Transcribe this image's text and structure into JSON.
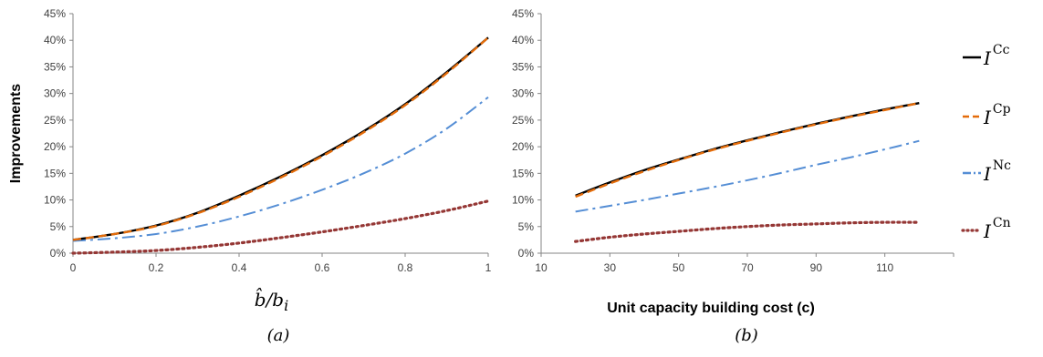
{
  "chart_data": [
    {
      "type": "line",
      "panel_label": "(a)",
      "xlabel": "b̂/b",
      "xlabel_sub": "i",
      "ylabel": "Improvements",
      "xlim": [
        0,
        1
      ],
      "ylim": [
        0,
        45
      ],
      "x_ticks": [
        "0",
        "0.2",
        "0.4",
        "0.6",
        "0.8",
        "1"
      ],
      "y_ticks": [
        "0%",
        "5%",
        "10%",
        "15%",
        "20%",
        "25%",
        "30%",
        "35%",
        "40%",
        "45%"
      ],
      "x": [
        0,
        0.1,
        0.2,
        0.3,
        0.4,
        0.5,
        0.6,
        0.7,
        0.8,
        0.9,
        1.0
      ],
      "series": [
        {
          "name": "Cc",
          "color": "#000000",
          "values": [
            2.5,
            3.6,
            5.2,
            7.6,
            10.8,
            14.4,
            18.4,
            22.9,
            28.0,
            34.0,
            40.5
          ]
        },
        {
          "name": "Cp",
          "color": "#E46C0A",
          "values": [
            2.5,
            3.6,
            5.1,
            7.5,
            10.6,
            14.2,
            18.2,
            22.7,
            27.8,
            33.8,
            40.5
          ]
        },
        {
          "name": "Nc",
          "color": "#558ED5",
          "values": [
            2.3,
            2.8,
            3.6,
            5.0,
            6.9,
            9.2,
            11.9,
            15.0,
            18.7,
            23.4,
            29.3
          ]
        },
        {
          "name": "Cn",
          "color": "#953735",
          "values": [
            0.0,
            0.2,
            0.5,
            1.1,
            1.9,
            2.9,
            4.0,
            5.2,
            6.5,
            8.0,
            9.8
          ]
        }
      ]
    },
    {
      "type": "line",
      "panel_label": "(b)",
      "xlabel": "Unit capacity building cost (c)",
      "ylabel": "",
      "xlim": [
        10,
        130
      ],
      "ylim": [
        0,
        45
      ],
      "x_ticks": [
        "10",
        "30",
        "50",
        "70",
        "90",
        "110"
      ],
      "y_ticks": [
        "0%",
        "5%",
        "10%",
        "15%",
        "20%",
        "25%",
        "30%",
        "35%",
        "40%",
        "45%"
      ],
      "x": [
        20,
        30,
        40,
        50,
        60,
        70,
        80,
        90,
        100,
        110,
        120
      ],
      "series": [
        {
          "name": "Cc",
          "color": "#000000",
          "values": [
            10.8,
            13.3,
            15.6,
            17.6,
            19.5,
            21.2,
            22.8,
            24.3,
            25.7,
            27.0,
            28.2
          ]
        },
        {
          "name": "Cp",
          "color": "#E46C0A",
          "values": [
            10.6,
            13.1,
            15.4,
            17.5,
            19.4,
            21.1,
            22.7,
            24.2,
            25.6,
            26.9,
            28.2
          ]
        },
        {
          "name": "Nc",
          "color": "#558ED5",
          "values": [
            7.8,
            8.9,
            10.0,
            11.2,
            12.4,
            13.7,
            15.1,
            16.6,
            18.0,
            19.5,
            21.1
          ]
        },
        {
          "name": "Cn",
          "color": "#953735",
          "values": [
            2.2,
            3.0,
            3.6,
            4.1,
            4.6,
            5.0,
            5.3,
            5.5,
            5.7,
            5.8,
            5.8
          ]
        }
      ]
    }
  ],
  "legend": {
    "placement": "right",
    "symbol": "I",
    "items": [
      {
        "sup": "Cc",
        "color": "#000000",
        "dash": "solid"
      },
      {
        "sup": "Cp",
        "color": "#E46C0A",
        "dash": "dashed"
      },
      {
        "sup": "Nc",
        "color": "#558ED5",
        "dash": "dashdot"
      },
      {
        "sup": "Cn",
        "color": "#953735",
        "dash": "dotted"
      }
    ]
  }
}
